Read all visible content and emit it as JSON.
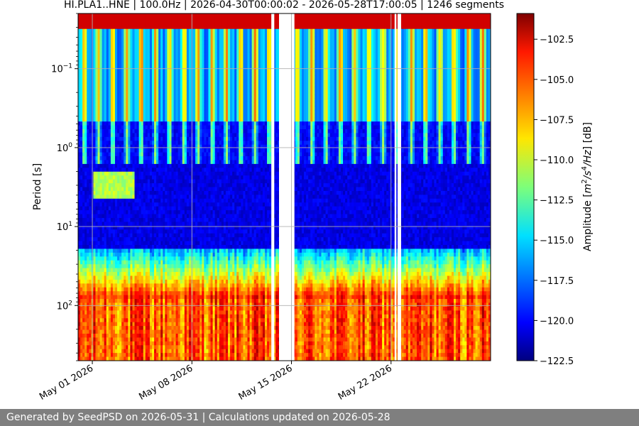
{
  "chart_data": {
    "type": "heatmap",
    "title": "HI.PLA1..HNE | 100.0Hz | 2026-04-30T00:00:02 - 2026-05-28T17:00:05 | 1246 segments",
    "xlabel": "",
    "ylabel": "Period [s]",
    "x_range": [
      "2026-04-30",
      "2026-05-29"
    ],
    "x_ticks": [
      "May 01 2026",
      "May 08 2026",
      "May 15 2026",
      "May 22 2026"
    ],
    "x_tick_dates": [
      "2026-05-01",
      "2026-05-08",
      "2026-05-15",
      "2026-05-22"
    ],
    "y_scale": "log",
    "y_inverted": true,
    "y_range": [
      0.02,
      500
    ],
    "y_ticks": [
      {
        "value": 0.1,
        "base": "10",
        "exp": "−1"
      },
      {
        "value": 1,
        "base": "10",
        "exp": "0"
      },
      {
        "value": 10,
        "base": "10",
        "exp": "1"
      },
      {
        "value": 100,
        "base": "10",
        "exp": "2"
      }
    ],
    "grid": true,
    "colormap": "jet",
    "colorbar": {
      "label_prefix": "Amplitude [",
      "label_unit": "m",
      "label_sup1": "2",
      "label_mid": "/s",
      "label_sup2": "4",
      "label_tail": "/Hz",
      "label_suffix": "] [dB]",
      "min": -122.5,
      "max": -100.9,
      "ticks": [
        "−102.5",
        "−105.0",
        "−107.5",
        "−110.0",
        "−112.5",
        "−115.0",
        "−117.5",
        "−120.0",
        "−122.5"
      ],
      "tick_values": [
        -102.5,
        -105.0,
        -107.5,
        -110.0,
        -112.5,
        -115.0,
        -117.5,
        -120.0,
        -122.5
      ]
    },
    "data_gaps": [
      [
        "2026-05-13T14:00",
        "2026-05-13T19:00"
      ],
      [
        "2026-05-14T03:00",
        "2026-05-15T05:00"
      ],
      [
        "2026-05-22T06:00",
        "2026-05-22T09:00"
      ],
      [
        "2026-05-22T11:00",
        "2026-05-22T17:00"
      ]
    ]
  },
  "footer": {
    "text": "Generated by SeedPSD on 2026-05-31 | Calculations updated on 2026-05-28"
  }
}
